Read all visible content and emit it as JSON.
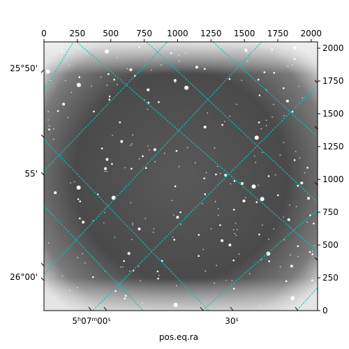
{
  "chart_data": {
    "type": "image",
    "title": "",
    "xlabel": "pos.eq.ra",
    "ylabel": "",
    "pixel_axes": {
      "x_ticks": [
        0,
        250,
        500,
        750,
        1000,
        1250,
        1500,
        1750,
        2000
      ],
      "y_ticks": [
        0,
        250,
        500,
        750,
        1000,
        1250,
        1500,
        1750,
        2000
      ],
      "xlim": [
        0,
        2048
      ],
      "ylim": [
        0,
        2048
      ]
    },
    "world_axes": {
      "ra_tick_labels": [
        "5h07m00s",
        "30s"
      ],
      "dec_tick_labels": [
        "25°50'",
        "55'",
        "26°00'"
      ]
    },
    "grid": true,
    "grid_color": "#00c8c8",
    "colormap": "grayscale"
  }
}
